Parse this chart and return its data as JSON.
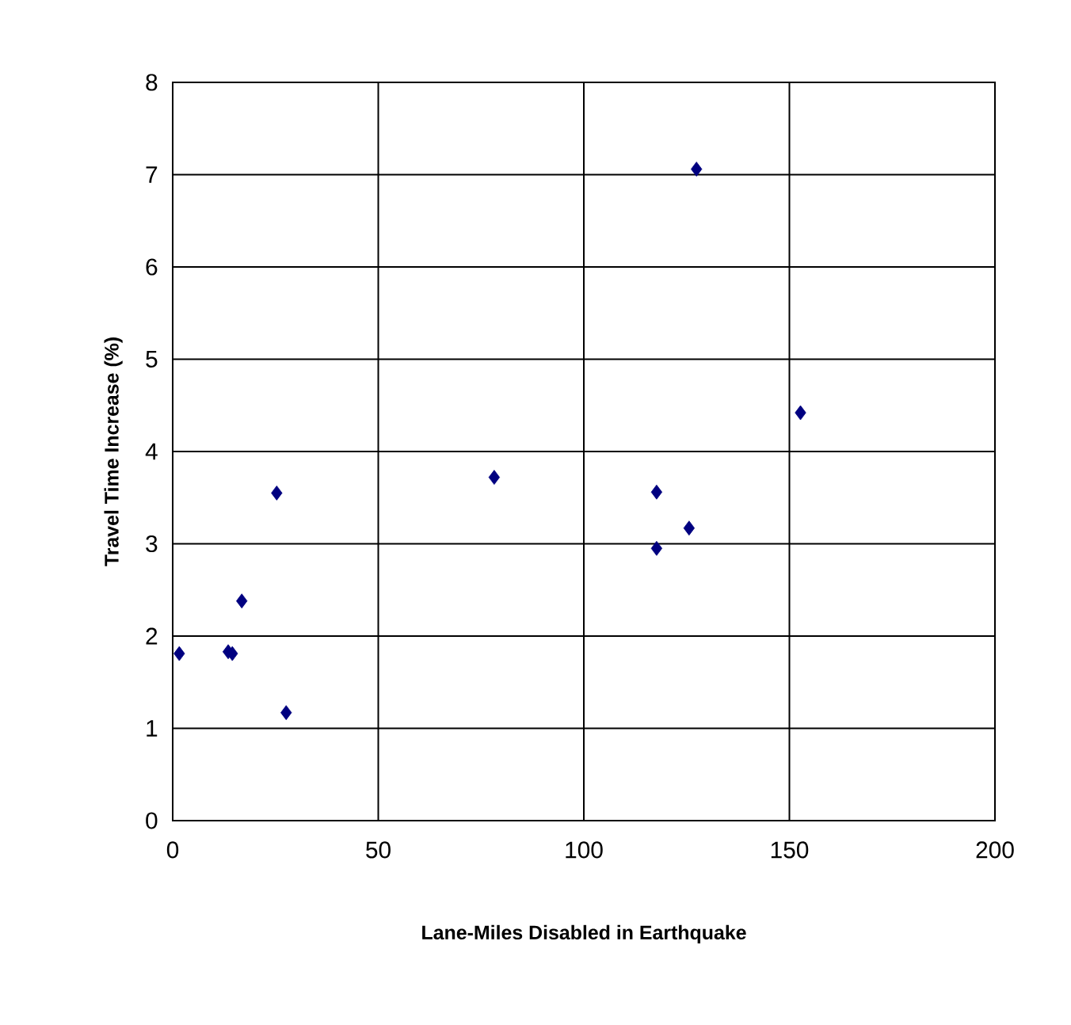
{
  "chart_data": {
    "type": "scatter",
    "xlabel": "Lane-Miles Disabled in Earthquake",
    "ylabel": "Travel Time Increase (%)",
    "x": [
      1.6,
      13.5,
      14.5,
      16.8,
      25.3,
      27.6,
      78.2,
      117.7,
      117.7,
      125.6,
      127.4,
      152.7
    ],
    "values": [
      1.81,
      1.83,
      1.81,
      2.38,
      3.55,
      1.17,
      3.72,
      3.56,
      2.95,
      3.17,
      7.06,
      4.42
    ],
    "color": "#000080",
    "marker": "diamond",
    "xlim": [
      0,
      200
    ],
    "xticks": [
      0,
      50,
      100,
      150,
      200
    ],
    "ylim": [
      0,
      8
    ],
    "yticks": [
      0,
      1,
      2,
      3,
      4,
      5,
      6,
      7,
      8
    ],
    "grid": true
  }
}
